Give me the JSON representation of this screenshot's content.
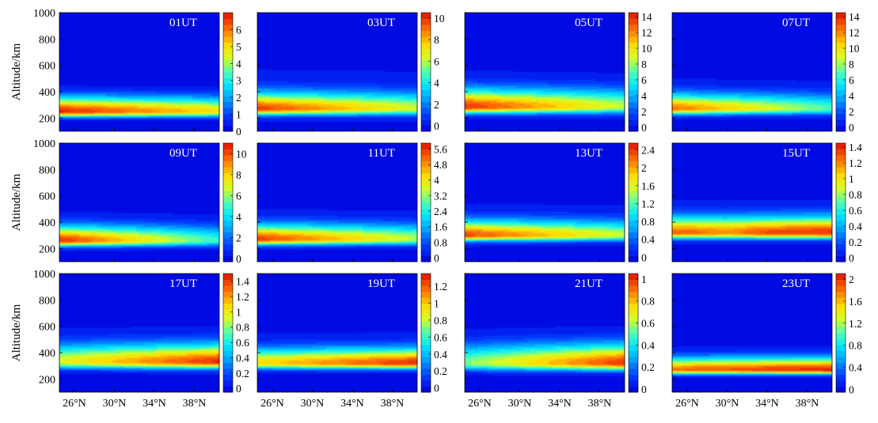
{
  "figure": {
    "ylabel": "Altitude/km",
    "xlabel": "",
    "xtick_labels": [
      "26°N",
      "30°N",
      "34°N",
      "38°N"
    ],
    "ytick_labels": [
      "200",
      "400",
      "600",
      "800",
      "1000"
    ]
  },
  "chart_data": [
    {
      "type": "heatmap",
      "title": "01UT",
      "x": [
        24.5,
        40.5
      ],
      "xticks": [
        26,
        30,
        34,
        38
      ],
      "ylim": [
        100,
        1000
      ],
      "yticks": [
        200,
        400,
        600,
        800,
        1000
      ],
      "xlabel": "",
      "ylabel": "Altitude/km",
      "colorbar": {
        "min": 0,
        "max": 7,
        "ticks": [
          0,
          1,
          2,
          3,
          4,
          5,
          6
        ]
      },
      "peak": {
        "altitude_km": 250,
        "value_south": 6.8,
        "value_north": 4.9,
        "width_km": 55,
        "band": "lower",
        "trend": "decreasing northward"
      }
    },
    {
      "type": "heatmap",
      "title": "03UT",
      "x": [
        24.5,
        40.5
      ],
      "xticks": [
        26,
        30,
        34,
        38
      ],
      "ylim": [
        100,
        1000
      ],
      "yticks": [
        200,
        400,
        600,
        800,
        1000
      ],
      "xlabel": "",
      "ylabel": "",
      "colorbar": {
        "min": -0.5,
        "max": 10.5,
        "ticks": [
          0,
          2,
          4,
          6,
          8,
          10
        ]
      },
      "peak": {
        "altitude_km": 270,
        "value_south": 9.8,
        "value_north": 6.3,
        "width_km": 60,
        "band": "lower",
        "trend": "decreasing northward"
      }
    },
    {
      "type": "heatmap",
      "title": "05UT",
      "x": [
        24.5,
        40.5
      ],
      "xticks": [
        26,
        30,
        34,
        38
      ],
      "ylim": [
        100,
        1000
      ],
      "yticks": [
        200,
        400,
        600,
        800,
        1000
      ],
      "xlabel": "",
      "ylabel": "",
      "colorbar": {
        "min": -0.5,
        "max": 14.5,
        "ticks": [
          0,
          2,
          4,
          6,
          8,
          10,
          12,
          14
        ]
      },
      "peak": {
        "altitude_km": 285,
        "value_south": 13.8,
        "value_north": 8.5,
        "width_km": 65,
        "band": "lower",
        "trend": "decreasing northward"
      }
    },
    {
      "type": "heatmap",
      "title": "07UT",
      "x": [
        24.5,
        40.5
      ],
      "xticks": [
        26,
        30,
        34,
        38
      ],
      "ylim": [
        100,
        1000
      ],
      "yticks": [
        200,
        400,
        600,
        800,
        1000
      ],
      "xlabel": "",
      "ylabel": "",
      "colorbar": {
        "min": -0.5,
        "max": 14.5,
        "ticks": [
          0,
          2,
          4,
          6,
          8,
          10,
          12,
          14
        ]
      },
      "peak": {
        "altitude_km": 270,
        "value_south": 12.5,
        "value_north": 6.8,
        "width_km": 55,
        "band": "lower",
        "trend": "decreasing northward"
      }
    },
    {
      "type": "heatmap",
      "title": "09UT",
      "x": [
        24.5,
        40.5
      ],
      "xticks": [
        26,
        30,
        34,
        38
      ],
      "ylim": [
        100,
        1000
      ],
      "yticks": [
        200,
        400,
        600,
        800,
        1000
      ],
      "xlabel": "",
      "ylabel": "Altitude/km",
      "colorbar": {
        "min": -0.3,
        "max": 11,
        "ticks": [
          0,
          2,
          4,
          6,
          8,
          10
        ]
      },
      "peak": {
        "altitude_km": 260,
        "value_south": 10.5,
        "value_north": 4.8,
        "width_km": 55,
        "band": "lower",
        "trend": "decreasing northward"
      }
    },
    {
      "type": "heatmap",
      "title": "11UT",
      "x": [
        24.5,
        40.5
      ],
      "xticks": [
        26,
        30,
        34,
        38
      ],
      "ylim": [
        100,
        1000
      ],
      "yticks": [
        200,
        400,
        600,
        800,
        1000
      ],
      "xlabel": "",
      "ylabel": "",
      "colorbar": {
        "min": -0.2,
        "max": 5.9,
        "ticks": [
          0,
          0.8,
          1.6,
          2.4,
          3.2,
          4,
          4.8,
          5.6
        ]
      },
      "peak": {
        "altitude_km": 270,
        "value_south": 5.5,
        "value_north": 3.4,
        "width_km": 55,
        "band": "lower",
        "trend": "decreasing northward"
      }
    },
    {
      "type": "heatmap",
      "title": "13UT",
      "x": [
        24.5,
        40.5
      ],
      "xticks": [
        26,
        30,
        34,
        38
      ],
      "ylim": [
        100,
        1000
      ],
      "yticks": [
        200,
        400,
        600,
        800,
        1000
      ],
      "xlabel": "",
      "ylabel": "",
      "colorbar": {
        "min": -0.1,
        "max": 2.55,
        "ticks": [
          0,
          0.4,
          0.8,
          1.2,
          1.6,
          2,
          2.4
        ]
      },
      "peak": {
        "altitude_km": 300,
        "value_south": 2.35,
        "value_north": 1.5,
        "width_km": 55,
        "band": "lower",
        "trend": "decreasing northward"
      }
    },
    {
      "type": "heatmap",
      "title": "15UT",
      "x": [
        24.5,
        40.5
      ],
      "xticks": [
        26,
        30,
        34,
        38
      ],
      "ylim": [
        100,
        1000
      ],
      "yticks": [
        200,
        400,
        600,
        800,
        1000
      ],
      "xlabel": "",
      "ylabel": "",
      "colorbar": {
        "min": -0.05,
        "max": 1.45,
        "ticks": [
          0,
          0.2,
          0.4,
          0.6,
          0.8,
          1,
          1.2,
          1.4
        ]
      },
      "peak": {
        "altitude_km": 320,
        "value_south": 1.25,
        "value_north": 1.38,
        "width_km": 60,
        "band": "lower",
        "trend": "minimum near 30°N"
      }
    },
    {
      "type": "heatmap",
      "title": "17UT",
      "x": [
        24.5,
        40.5
      ],
      "xticks": [
        26,
        30,
        34,
        38
      ],
      "ylim": [
        100,
        1000
      ],
      "yticks": [
        200,
        400,
        600,
        800,
        1000
      ],
      "xlabel": "",
      "ylabel": "Altitude/km",
      "colorbar": {
        "min": -0.05,
        "max": 1.5,
        "ticks": [
          0,
          0.2,
          0.4,
          0.6,
          0.8,
          1,
          1.2,
          1.4
        ]
      },
      "peak": {
        "altitude_km": 330,
        "value_south": 0.95,
        "value_north": 1.45,
        "width_km": 65,
        "band": "lower",
        "trend": "increasing northward"
      }
    },
    {
      "type": "heatmap",
      "title": "19UT",
      "x": [
        24.5,
        40.5
      ],
      "xticks": [
        26,
        30,
        34,
        38
      ],
      "ylim": [
        100,
        1000
      ],
      "yticks": [
        200,
        400,
        600,
        800,
        1000
      ],
      "xlabel": "",
      "ylabel": "",
      "colorbar": {
        "min": -0.05,
        "max": 1.35,
        "ticks": [
          0,
          0.2,
          0.4,
          0.6,
          0.8,
          1,
          1.2
        ]
      },
      "peak": {
        "altitude_km": 320,
        "value_south": 0.95,
        "value_north": 1.3,
        "width_km": 55,
        "band": "lower",
        "trend": "increasing northward"
      }
    },
    {
      "type": "heatmap",
      "title": "21UT",
      "x": [
        24.5,
        40.5
      ],
      "xticks": [
        26,
        30,
        34,
        38
      ],
      "ylim": [
        100,
        1000
      ],
      "yticks": [
        200,
        400,
        600,
        800,
        1000
      ],
      "xlabel": "",
      "ylabel": "",
      "colorbar": {
        "min": -0.03,
        "max": 1.05,
        "ticks": [
          0,
          0.2,
          0.4,
          0.6,
          0.8,
          1
        ]
      },
      "peak": {
        "altitude_km": 320,
        "value_south": 0.55,
        "value_north": 1.0,
        "width_km": 70,
        "band": "lower",
        "trend": "increasing northward"
      }
    },
    {
      "type": "heatmap",
      "title": "23UT",
      "x": [
        24.5,
        40.5
      ],
      "xticks": [
        26,
        30,
        34,
        38
      ],
      "ylim": [
        100,
        1000
      ],
      "yticks": [
        200,
        400,
        600,
        800,
        1000
      ],
      "xlabel": "",
      "ylabel": "",
      "colorbar": {
        "min": -0.05,
        "max": 2.1,
        "ticks": [
          0,
          0.4,
          0.8,
          1.2,
          1.6,
          2
        ]
      },
      "peak": {
        "altitude_km": 270,
        "value_south": 1.8,
        "value_north": 2.05,
        "width_km": 45,
        "band": "lower",
        "trend": "increasing northward"
      }
    }
  ]
}
